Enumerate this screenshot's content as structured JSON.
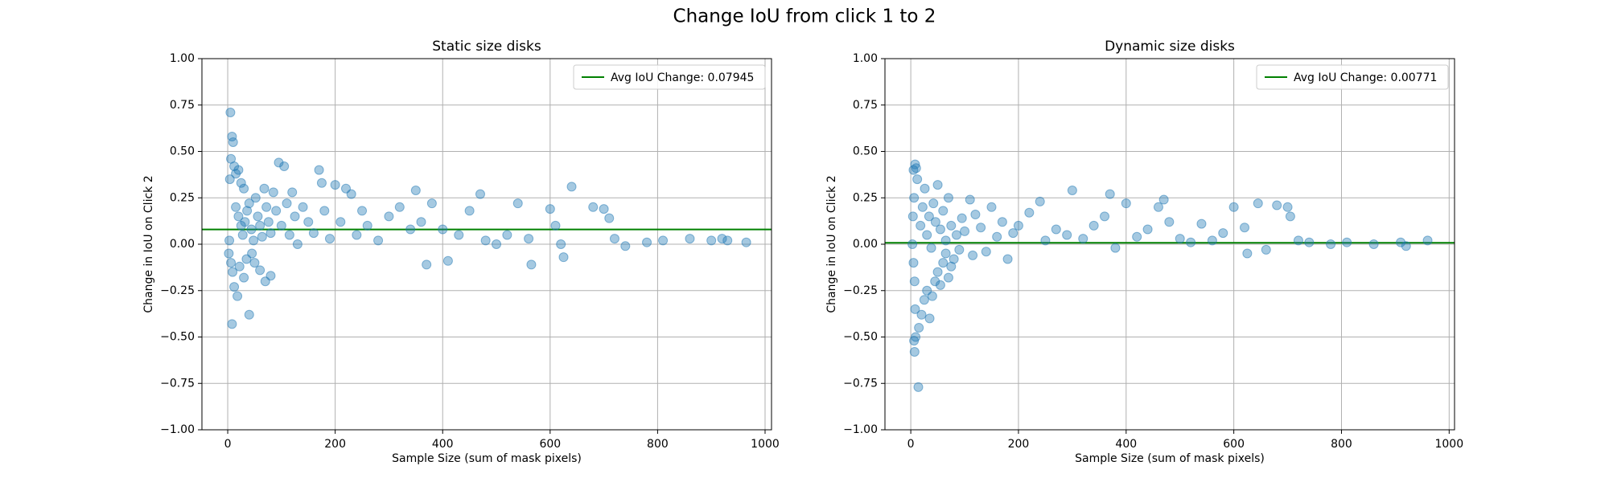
{
  "title": "Change IoU from click 1 to 2",
  "chart_data": [
    {
      "type": "scatter",
      "title": "Static size disks",
      "xlabel": "Sample Size (sum of mask pixels)",
      "ylabel": "Change in IoU on Click 2",
      "color": "#1f77b4",
      "grid": true,
      "legend": "upper right",
      "xlim": [
        -48,
        1012
      ],
      "xticks": [
        0,
        200,
        400,
        600,
        800,
        1000
      ],
      "ylim": [
        -1,
        1
      ],
      "yticks": [
        {
          "value": -1,
          "label": "−1.00"
        },
        {
          "value": -0.75,
          "label": "−0.75"
        },
        {
          "value": -0.5,
          "label": "−0.50"
        },
        {
          "value": -0.25,
          "label": "−0.25"
        },
        {
          "value": 0,
          "label": "0.00"
        },
        {
          "value": 0.25,
          "label": "0.25"
        },
        {
          "value": 0.5,
          "label": "0.50"
        },
        {
          "value": 0.75,
          "label": "0.75"
        },
        {
          "value": 1,
          "label": "1.00"
        }
      ],
      "hline": {
        "label": "Avg IoU Change: 0.07945",
        "value": 0.07945,
        "color": "#008000"
      },
      "x": [
        5,
        8,
        10,
        6,
        12,
        15,
        4,
        20,
        25,
        30,
        3,
        2,
        6,
        9,
        12,
        18,
        8,
        40,
        30,
        22,
        35,
        45,
        50,
        60,
        70,
        80,
        15,
        20,
        25,
        28,
        32,
        36,
        40,
        44,
        48,
        52,
        56,
        60,
        64,
        68,
        72,
        76,
        80,
        85,
        90,
        95,
        100,
        105,
        110,
        115,
        120,
        125,
        130,
        140,
        150,
        160,
        170,
        175,
        180,
        190,
        200,
        210,
        220,
        230,
        240,
        250,
        260,
        280,
        300,
        320,
        340,
        350,
        360,
        370,
        380,
        400,
        410,
        430,
        450,
        470,
        480,
        500,
        520,
        540,
        560,
        565,
        600,
        610,
        620,
        625,
        640,
        680,
        700,
        710,
        720,
        740,
        780,
        810,
        860,
        900,
        920,
        930,
        965
      ],
      "values": [
        0.71,
        0.58,
        0.55,
        0.46,
        0.42,
        0.38,
        0.35,
        0.4,
        0.33,
        0.3,
        0.02,
        -0.05,
        -0.1,
        -0.15,
        -0.23,
        -0.28,
        -0.43,
        -0.38,
        -0.18,
        -0.12,
        -0.08,
        -0.05,
        -0.1,
        -0.14,
        -0.2,
        -0.17,
        0.2,
        0.15,
        0.1,
        0.05,
        0.12,
        0.18,
        0.22,
        0.08,
        0.02,
        0.25,
        0.15,
        0.1,
        0.04,
        0.3,
        0.2,
        0.12,
        0.06,
        0.28,
        0.18,
        0.44,
        0.1,
        0.42,
        0.22,
        0.05,
        0.28,
        0.15,
        0.0,
        0.2,
        0.12,
        0.06,
        0.4,
        0.33,
        0.18,
        0.03,
        0.32,
        0.12,
        0.3,
        0.27,
        0.05,
        0.18,
        0.1,
        0.02,
        0.15,
        0.2,
        0.08,
        0.29,
        0.12,
        -0.11,
        0.22,
        0.08,
        -0.09,
        0.05,
        0.18,
        0.27,
        0.02,
        0.0,
        0.05,
        0.22,
        0.03,
        -0.11,
        0.19,
        0.1,
        0.0,
        -0.07,
        0.31,
        0.2,
        0.19,
        0.14,
        0.03,
        -0.01,
        0.01,
        0.02,
        0.03,
        0.02,
        0.03,
        0.02,
        0.01
      ]
    },
    {
      "type": "scatter",
      "title": "Dynamic size disks",
      "xlabel": "Sample Size (sum of mask pixels)",
      "ylabel": "Change in IoU on Click 2",
      "color": "#1f77b4",
      "grid": true,
      "legend": "upper right",
      "xlim": [
        -48,
        1010
      ],
      "xticks": [
        0,
        200,
        400,
        600,
        800,
        1000
      ],
      "ylim": [
        -1,
        1
      ],
      "yticks": [
        {
          "value": -1,
          "label": "−1.00"
        },
        {
          "value": -0.75,
          "label": "−0.75"
        },
        {
          "value": -0.5,
          "label": "−0.50"
        },
        {
          "value": -0.25,
          "label": "−0.25"
        },
        {
          "value": 0,
          "label": "0.00"
        },
        {
          "value": 0.25,
          "label": "0.25"
        },
        {
          "value": 0.5,
          "label": "0.50"
        },
        {
          "value": 0.75,
          "label": "0.75"
        },
        {
          "value": 1,
          "label": "1.00"
        }
      ],
      "hline": {
        "label": "Avg IoU Change: 0.00771",
        "value": 0.00771,
        "color": "#008000"
      },
      "x": [
        5,
        8,
        10,
        12,
        6,
        4,
        3,
        5,
        7,
        8,
        9,
        6,
        7,
        14,
        15,
        20,
        25,
        30,
        35,
        40,
        45,
        50,
        55,
        60,
        65,
        70,
        75,
        80,
        18,
        22,
        26,
        30,
        34,
        38,
        42,
        46,
        50,
        55,
        60,
        65,
        70,
        75,
        85,
        90,
        95,
        100,
        110,
        115,
        120,
        130,
        140,
        150,
        160,
        170,
        180,
        190,
        200,
        220,
        240,
        250,
        270,
        290,
        300,
        320,
        340,
        360,
        370,
        380,
        400,
        420,
        440,
        460,
        470,
        480,
        500,
        520,
        540,
        560,
        580,
        600,
        620,
        625,
        645,
        660,
        680,
        700,
        705,
        720,
        740,
        780,
        810,
        860,
        910,
        920,
        960
      ],
      "values": [
        0.4,
        0.43,
        0.41,
        0.35,
        0.25,
        0.15,
        0.0,
        -0.1,
        -0.2,
        -0.35,
        -0.5,
        -0.52,
        -0.58,
        -0.77,
        -0.45,
        -0.38,
        -0.3,
        -0.25,
        -0.4,
        -0.28,
        -0.2,
        -0.15,
        -0.22,
        -0.1,
        -0.05,
        -0.18,
        -0.12,
        -0.08,
        0.1,
        0.2,
        0.3,
        0.05,
        0.15,
        -0.02,
        0.22,
        0.12,
        0.32,
        0.08,
        0.18,
        0.02,
        0.25,
        0.1,
        0.05,
        -0.03,
        0.14,
        0.07,
        0.24,
        -0.06,
        0.16,
        0.09,
        -0.04,
        0.2,
        0.04,
        0.12,
        -0.08,
        0.06,
        0.1,
        0.17,
        0.23,
        0.02,
        0.08,
        0.05,
        0.29,
        0.03,
        0.1,
        0.15,
        0.27,
        -0.02,
        0.22,
        0.04,
        0.08,
        0.2,
        0.24,
        0.12,
        0.03,
        0.01,
        0.11,
        0.02,
        0.06,
        0.2,
        0.09,
        -0.05,
        0.22,
        -0.03,
        0.21,
        0.2,
        0.15,
        0.02,
        0.01,
        0.0,
        0.01,
        0.0,
        0.01,
        -0.01,
        0.02
      ]
    }
  ]
}
